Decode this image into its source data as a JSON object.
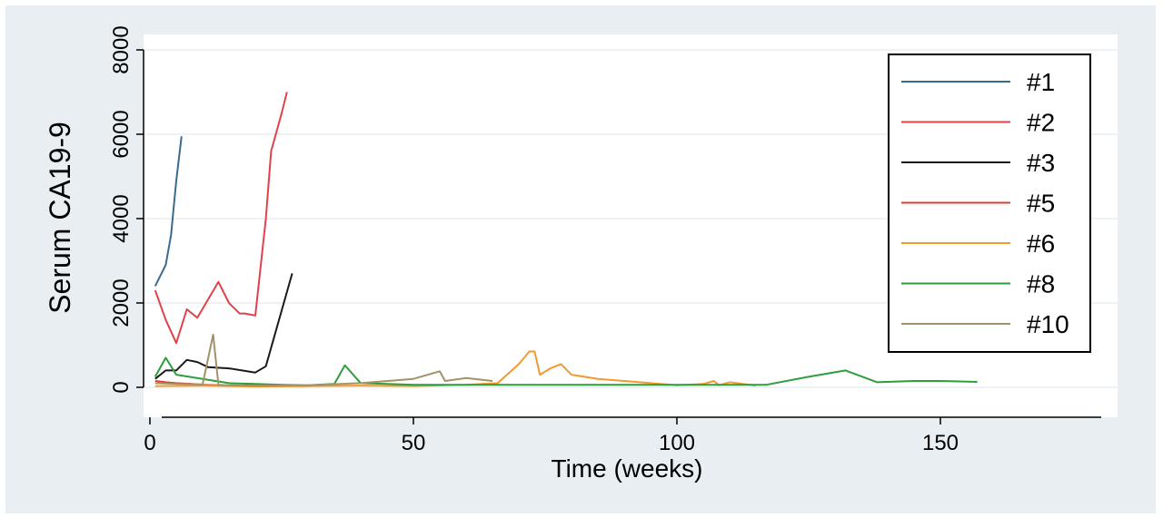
{
  "chart_data": {
    "type": "line",
    "title": "",
    "xlabel": "Time (weeks)",
    "ylabel": "Serum CA19-9",
    "xlim": [
      0,
      160
    ],
    "ylim": [
      0,
      8000
    ],
    "xticks": [
      0,
      50,
      100,
      150
    ],
    "yticks": [
      0,
      2000,
      4000,
      6000,
      8000
    ],
    "xtick_labels": [
      "0",
      "50",
      "100",
      "150"
    ],
    "ytick_labels": [
      "0",
      "2000",
      "4000",
      "6000",
      "8000"
    ],
    "grid": "horizontal",
    "legend_position": "top-right",
    "colors": {
      "background_outer": "#e8eef2",
      "plot_background": "#ffffff",
      "gridline": "#e8eef2",
      "axis": "#000000"
    },
    "series": [
      {
        "name": "#1",
        "color": "#3a6a8e",
        "x": [
          1,
          3,
          4,
          5,
          6
        ],
        "y": [
          2400,
          2900,
          3600,
          4900,
          5950
        ]
      },
      {
        "name": "#2",
        "color": "#e0424a",
        "x": [
          1,
          3,
          5,
          7,
          9,
          13,
          15,
          17,
          18,
          20,
          22,
          23,
          25,
          26
        ],
        "y": [
          2300,
          1600,
          1050,
          1850,
          1650,
          2500,
          2000,
          1750,
          1750,
          1700,
          4000,
          5600,
          6500,
          7000
        ]
      },
      {
        "name": "#3",
        "color": "#1a1a1a",
        "x": [
          1,
          3,
          5,
          7,
          9,
          11,
          15,
          20,
          22,
          27
        ],
        "y": [
          200,
          400,
          400,
          650,
          600,
          480,
          450,
          350,
          500,
          2700
        ]
      },
      {
        "name": "#5",
        "color": "#e23c3c",
        "x": [
          1,
          3,
          5,
          8,
          10,
          13,
          15,
          20
        ],
        "y": [
          150,
          120,
          100,
          80,
          60,
          50,
          40,
          40
        ]
      },
      {
        "name": "#6",
        "color": "#f29a2e",
        "x": [
          1,
          10,
          20,
          30,
          40,
          50,
          60,
          66,
          70,
          72,
          73,
          74,
          76,
          78,
          80,
          85,
          90,
          95,
          100,
          105,
          107,
          108,
          110,
          115
        ],
        "y": [
          30,
          40,
          20,
          30,
          40,
          30,
          60,
          100,
          550,
          850,
          850,
          300,
          450,
          550,
          300,
          200,
          150,
          100,
          50,
          80,
          150,
          50,
          120,
          40
        ]
      },
      {
        "name": "#8",
        "color": "#2e9e3c",
        "x": [
          1,
          3,
          5,
          10,
          15,
          20,
          25,
          30,
          35,
          37,
          40,
          45,
          50,
          60,
          70,
          80,
          90,
          100,
          110,
          117,
          125,
          132,
          138,
          145,
          150,
          157
        ],
        "y": [
          250,
          700,
          300,
          200,
          100,
          80,
          60,
          50,
          80,
          520,
          100,
          80,
          60,
          60,
          60,
          60,
          60,
          60,
          60,
          60,
          250,
          400,
          120,
          150,
          150,
          130
        ]
      },
      {
        "name": "#10",
        "color": "#a39267",
        "x": [
          1,
          5,
          10,
          12,
          13,
          15,
          20,
          30,
          40,
          50,
          55,
          56,
          60,
          65
        ],
        "y": [
          100,
          80,
          70,
          1250,
          60,
          50,
          40,
          50,
          100,
          200,
          380,
          150,
          220,
          150
        ]
      }
    ]
  }
}
